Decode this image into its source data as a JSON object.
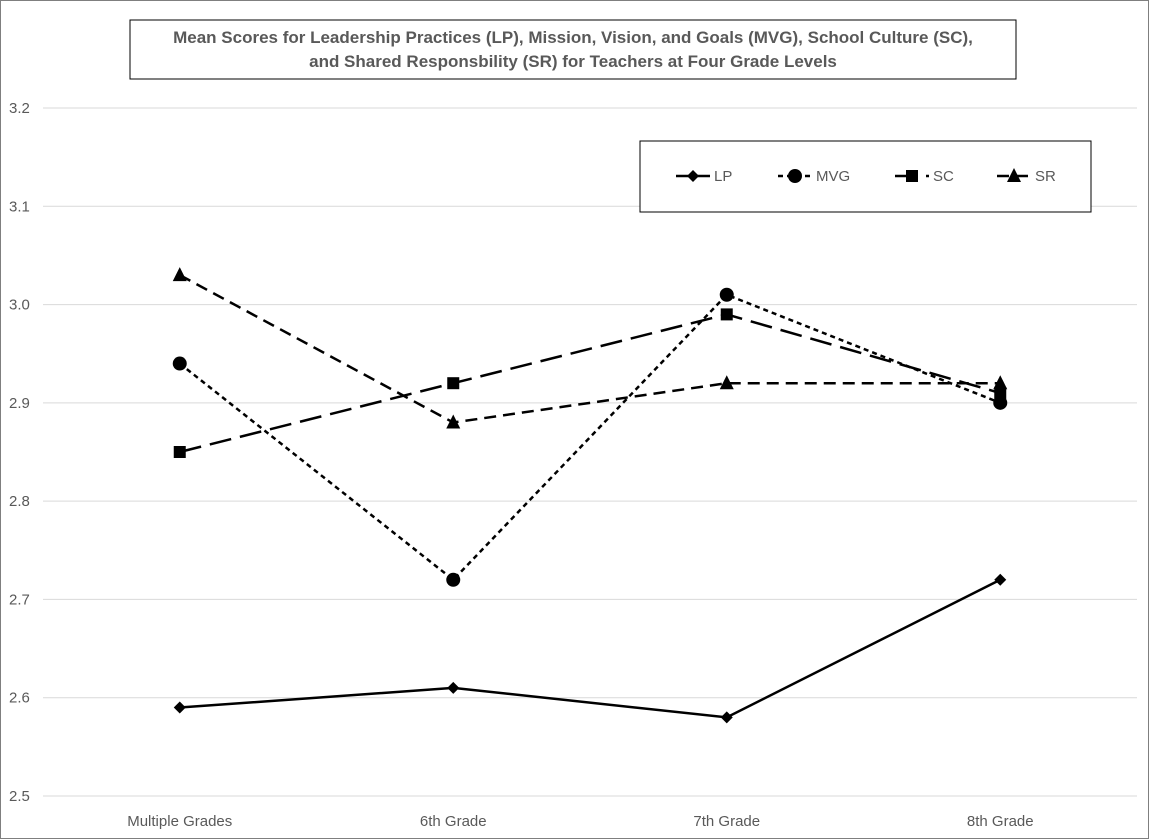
{
  "chart_data": {
    "type": "line",
    "title_lines": [
      "Mean Scores for Leadership Practices (LP), Mission, Vision, and Goals (MVG), School Culture (SC),",
      "and Shared Responsbility (SR) for Teachers at Four Grade Levels"
    ],
    "categories": [
      "Multiple Grades",
      "6th Grade",
      "7th Grade",
      "8th Grade"
    ],
    "ylim": [
      2.5,
      3.2
    ],
    "yticks": [
      "2.5",
      "2.6",
      "2.7",
      "2.8",
      "2.9",
      "3.0",
      "3.1",
      "3.2"
    ],
    "grid": true,
    "legend_position": "top-right",
    "series": [
      {
        "name": "LP",
        "values": [
          2.59,
          2.61,
          2.58,
          2.72
        ],
        "marker": "diamond",
        "line_style": "solid"
      },
      {
        "name": "MVG",
        "values": [
          2.94,
          2.72,
          3.01,
          2.9
        ],
        "marker": "circle",
        "line_style": "short-dash"
      },
      {
        "name": "SC",
        "values": [
          2.85,
          2.92,
          2.99,
          2.91
        ],
        "marker": "square",
        "line_style": "long-dash"
      },
      {
        "name": "SR",
        "values": [
          3.03,
          2.88,
          2.92,
          2.92
        ],
        "marker": "triangle",
        "line_style": "dash"
      }
    ],
    "colors": {
      "series_line": "#000000",
      "gridline": "#d9d9d9",
      "text": "#595959",
      "border": "#000000"
    }
  }
}
